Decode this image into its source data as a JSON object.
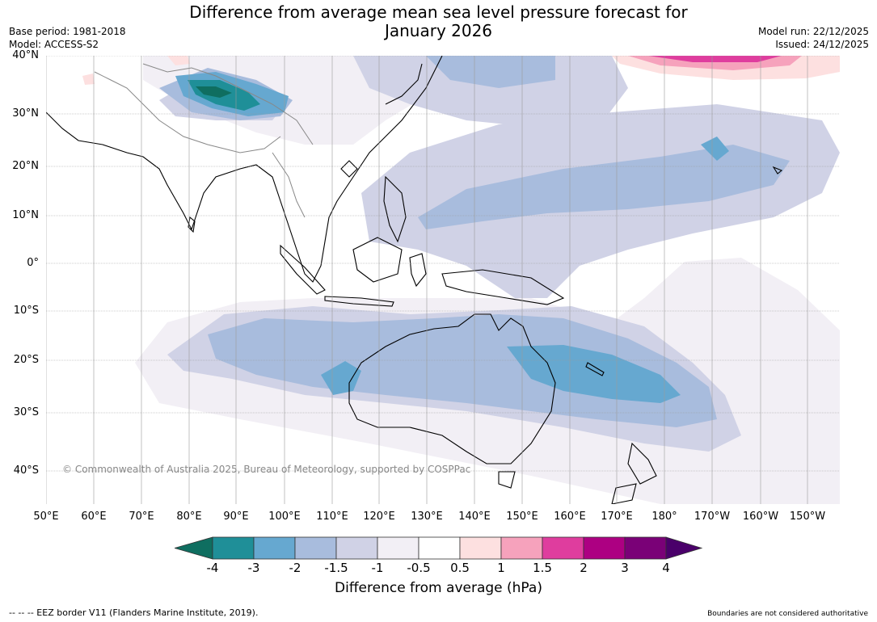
{
  "header": {
    "title_line1": "Difference from average mean sea level pressure forecast for",
    "title_line2": "January 2026",
    "base_period": "Base period: 1981-2018",
    "model": "Model: ACCESS-S2",
    "model_run": "Model run: 22/12/2025",
    "issued": "Issued: 24/12/2025"
  },
  "map": {
    "lat_labels": [
      "40°N",
      "30°N",
      "20°N",
      "10°N",
      "0°",
      "10°S",
      "20°S",
      "30°S",
      "40°S"
    ],
    "lon_labels": [
      "50°E",
      "60°E",
      "70°E",
      "80°E",
      "90°E",
      "100°E",
      "110°E",
      "120°E",
      "130°E",
      "140°E",
      "150°E",
      "160°E",
      "170°E",
      "180°",
      "170°W",
      "160°W",
      "150°W"
    ],
    "copyright": "© Commonwealth of Australia 2025, Bureau of Meteorology, supported by COSPPac"
  },
  "colorbar": {
    "ticks": [
      "-4",
      "-3",
      "-2",
      "-1.5",
      "-1",
      "-0.5",
      "0.5",
      "1",
      "1.5",
      "2",
      "3",
      "4"
    ],
    "colors": [
      "#0f6e60",
      "#1f8f98",
      "#66a8d0",
      "#a8bcdd",
      "#d0d2e6",
      "#f2eff5",
      "#ffffff",
      "#fde0e0",
      "#f6a2bc",
      "#df3d9e",
      "#ad0082",
      "#7a0177",
      "#4a006a"
    ],
    "title": "Difference from average (hPa)"
  },
  "footer": {
    "eez": "--  --  -- EEZ border V11 (Flanders Marine Institute, 2019).",
    "disclaimer": "Boundaries are not considered authoritative"
  },
  "colors": {
    "land_border": "#000000",
    "grid": "#999999"
  }
}
